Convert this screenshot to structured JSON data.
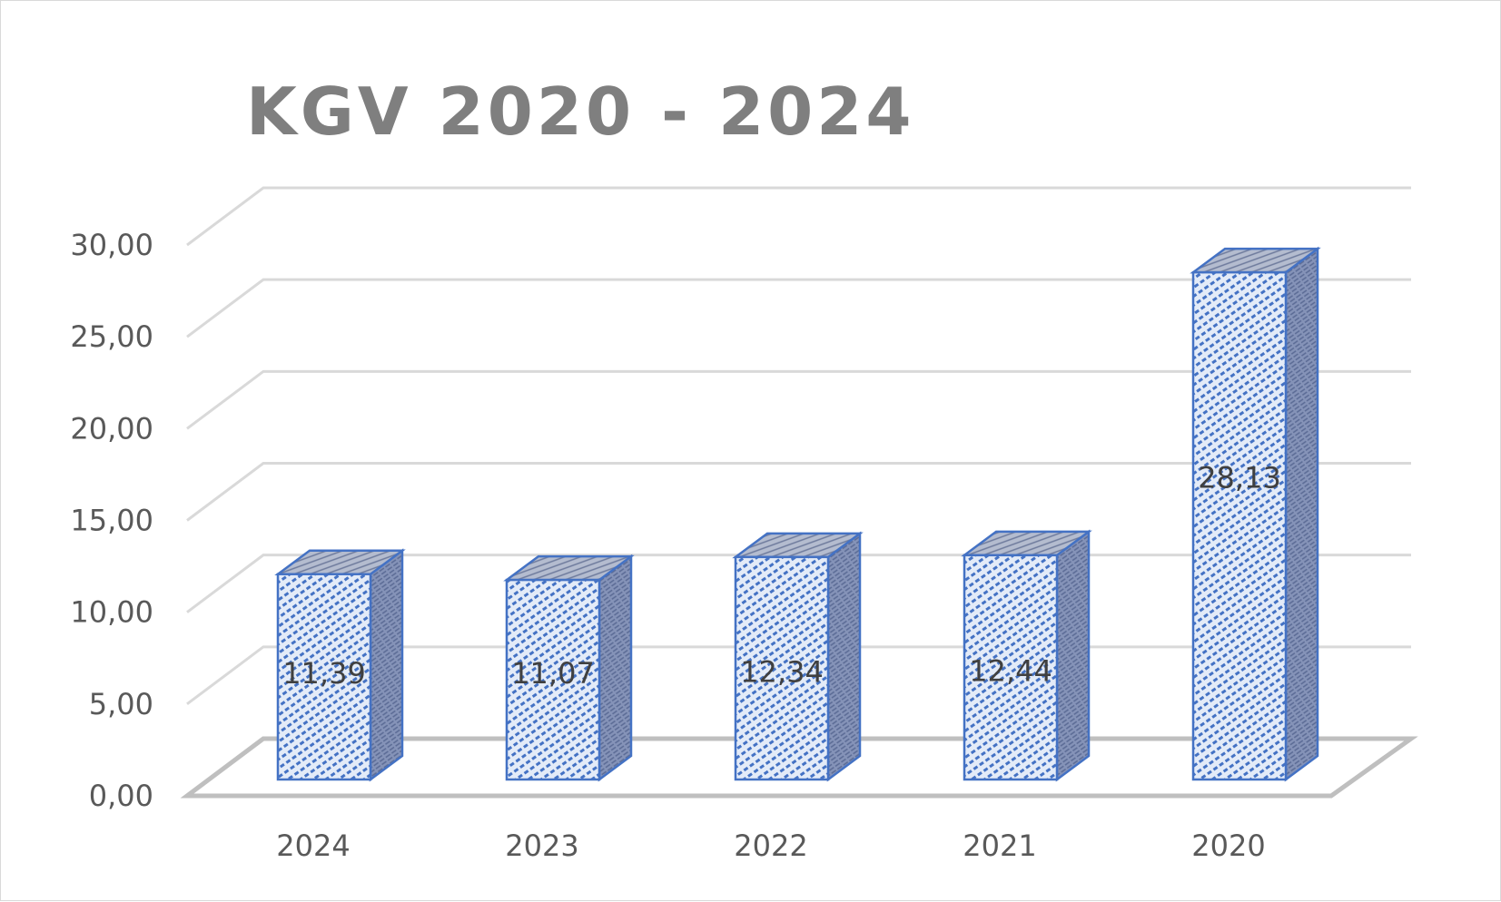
{
  "chart_data": {
    "type": "bar",
    "title": "KGV 2020 - 2024",
    "categories": [
      "2024",
      "2023",
      "2022",
      "2021",
      "2020"
    ],
    "values": [
      11.39,
      11.07,
      12.34,
      12.44,
      28.13
    ],
    "value_labels": [
      "11,39",
      "11,07",
      "12,34",
      "12,44",
      "28,13"
    ],
    "ylim": [
      0,
      30
    ],
    "y_ticks": [
      "0,00",
      "5,00",
      "10,00",
      "15,00",
      "20,00",
      "25,00",
      "30,00"
    ],
    "xlabel": "",
    "ylabel": "",
    "grid": true,
    "style": "3d-column",
    "colors": {
      "front": "#dfe8f7",
      "hatch": "#4472c4",
      "side": "#7f8fb5",
      "top": "#a5afc5",
      "edge": "#4472c4",
      "grid": "#d9d9d9",
      "floor": "#bfbfbf"
    }
  }
}
